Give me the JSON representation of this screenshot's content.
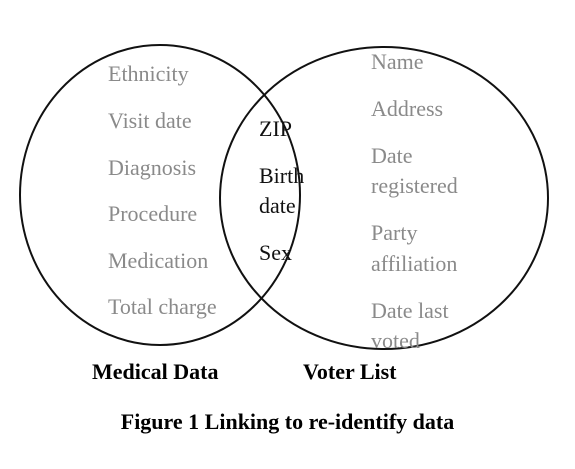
{
  "left_set": {
    "label": "Medical Data",
    "items": [
      "Ethnicity",
      "Visit date",
      "Diagnosis",
      "Procedure",
      "Medication",
      "Total charge"
    ]
  },
  "intersection": {
    "items": [
      "ZIP",
      "Birth",
      "date",
      "Sex"
    ]
  },
  "right_set": {
    "label": "Voter List",
    "items": [
      "Name",
      "Address",
      "Date",
      "registered",
      "Party",
      "affiliation",
      "Date last",
      "voted"
    ]
  },
  "caption": "Figure 1 Linking to re-identify data",
  "colors": {
    "outline": "#111111",
    "outer_text": "#8a8a8a",
    "inner_text": "#111111"
  }
}
